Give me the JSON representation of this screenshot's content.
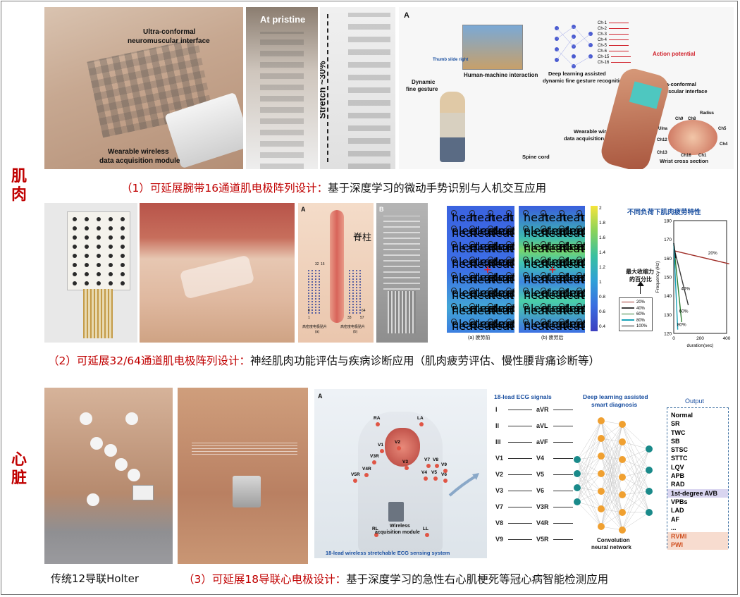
{
  "sections": {
    "muscle": "肌\n肉",
    "heart": "心\n脏"
  },
  "captions": {
    "c1_prefix": "（1）可延展腕带16通道肌电极阵列设计：",
    "c1_suffix": "基于深度学习的微动手势识别与人机交互应用",
    "c2_prefix": "（2）可延展32/64通道肌电极阵列设计：",
    "c2_suffix": "神经肌肉功能评估与疾病诊断应用（肌肉疲劳评估、慢性腰背痛诊断等）",
    "holter": "传统12导联Holter",
    "c3_prefix": "（3）可延展18导联心电极设计：",
    "c3_suffix": "基于深度学习的急性右心肌梗死等冠心病智能检测应用"
  },
  "row1": {
    "p1": {
      "label1": "Ultra-conformal",
      "label2": "neuromuscular interface",
      "label3": "Wearable wireless",
      "label4": "data acquisition module"
    },
    "p2": {
      "label": "At pristine"
    },
    "p3": {
      "label": "Stretch ~30%"
    },
    "p4": {
      "letter": "A",
      "thumb": "Thumb slide right",
      "dyn1": "Dynamic",
      "dyn2": "fine gesture",
      "hmi": "Human-machine interaction",
      "dl1": "Deep learning assisted",
      "dl2": "dynamic fine gesture recognition",
      "ap": "Action potential",
      "uc1": "Ultra-conformal",
      "uc2": "neuromuscular interface",
      "ww1": "Wearable wireless",
      "ww2": "data acquisition module",
      "spine": "Spine cord",
      "wrist": "Wrist cross section",
      "channels": [
        "Ch-1",
        "Ch-2",
        "Ch-3",
        "Ch-4",
        "Ch-5",
        "Ch-6",
        "Ch-15",
        "Ch-16"
      ],
      "anat": {
        "ulna": "Ulna",
        "radius": "Radius",
        "ch9": "Ch9",
        "ch8": "Ch8",
        "ch5": "Ch5",
        "ch12": "Ch12",
        "ch13": "Ch13",
        "ch4": "Ch4",
        "ch16": "Ch16",
        "ch1": "Ch1"
      }
    }
  },
  "row2": {
    "pA": {
      "letter": "A",
      "spine": "脊柱",
      "n1": "32",
      "n2": "16",
      "n3": "64",
      "n4": "8",
      "n5": "1",
      "n6": "33",
      "n7": "57",
      "cap1": "高密度电极贴片",
      "cap2": "(a)",
      "cap3": "高密度电极贴片",
      "cap4": "(b)"
    },
    "pB": {
      "letter": "B"
    },
    "heat": {
      "before": "(a) 疲劳前",
      "after": "(b) 疲劳后",
      "ticks": [
        "2",
        "1.8",
        "1.6",
        "1.4",
        "1.2",
        "1",
        "0.8",
        "0.6",
        "0.4"
      ]
    },
    "fatigue_title": "不同负荷下肌肉疲劳特性",
    "mvc1": "最大收缩力",
    "mvc2": "的百分比"
  },
  "chart_data": {
    "type": "line",
    "title": "不同负荷下肌肉疲劳特性",
    "xlabel": "duration(sec)",
    "ylabel": "Frequency (Hz)",
    "xlim": [
      0,
      400
    ],
    "ylim": [
      120,
      180
    ],
    "xticks": [
      "0",
      "200",
      "400"
    ],
    "yticks": [
      "120",
      "130",
      "140",
      "150",
      "160",
      "170",
      "180"
    ],
    "legend_placement": "left",
    "series": [
      {
        "name": "20%",
        "color": "#a0302a",
        "x": [
          0,
          420
        ],
        "y": [
          164,
          157
        ]
      },
      {
        "name": "40%",
        "color": "#3c3c3c",
        "x": [
          0,
          110
        ],
        "y": [
          166,
          135
        ]
      },
      {
        "name": "60%",
        "color": "#2e7d32",
        "x": [
          0,
          60
        ],
        "y": [
          167,
          126
        ]
      },
      {
        "name": "80%",
        "color": "#17a2b8",
        "x": [
          0,
          30
        ],
        "y": [
          168,
          122
        ]
      },
      {
        "name": "100%",
        "color": "#111111",
        "x": [
          0,
          15
        ],
        "y": [
          168,
          160
        ]
      }
    ],
    "annotations": [
      "20%",
      "40%",
      "60%",
      "80%"
    ]
  },
  "row3": {
    "system": {
      "letter": "A",
      "ra": "RA",
      "la": "LA",
      "rl": "RL",
      "ll": "LL",
      "v1": "V1",
      "v2": "V2",
      "v3": "V3",
      "v3r": "V3R",
      "v4r": "V4R",
      "v5r": "V5R",
      "v4": "V4",
      "v5": "V5",
      "v6": "V6",
      "v7": "V7",
      "v8": "V8",
      "v9": "V9",
      "wm1": "Wireless",
      "wm2": "acquisition module",
      "caption": "18-lead wireless stretchable ECG sensing system"
    },
    "signals_title": "18-lead ECG signals",
    "leads": [
      [
        "I",
        "aVR"
      ],
      [
        "II",
        "aVL"
      ],
      [
        "III",
        "aVF"
      ],
      [
        "V1",
        "V4"
      ],
      [
        "V2",
        "V5"
      ],
      [
        "V3",
        "V6"
      ],
      [
        "V7",
        "V3R"
      ],
      [
        "V8",
        "V4R"
      ],
      [
        "V9",
        "V5R"
      ]
    ],
    "dl_title1": "Deep learning assisted",
    "dl_title2": "smart diagnosis",
    "cnn1": "Convolution",
    "cnn2": "neural network",
    "output_title": "Output",
    "outputs": [
      "Normal",
      "SR",
      "TWC",
      "SB",
      "STSC",
      "STTC",
      "LQV",
      "APB",
      "RAD",
      "1st-degree AVB",
      "VPBs",
      "LAD",
      "AF",
      "...",
      "RVMI",
      "PWI"
    ]
  },
  "colors": {
    "accent_red": "#c00000",
    "ecg_blue": "#1a4fa0",
    "node_teal": "#1a8a8a",
    "node_orange": "#f0a030"
  }
}
